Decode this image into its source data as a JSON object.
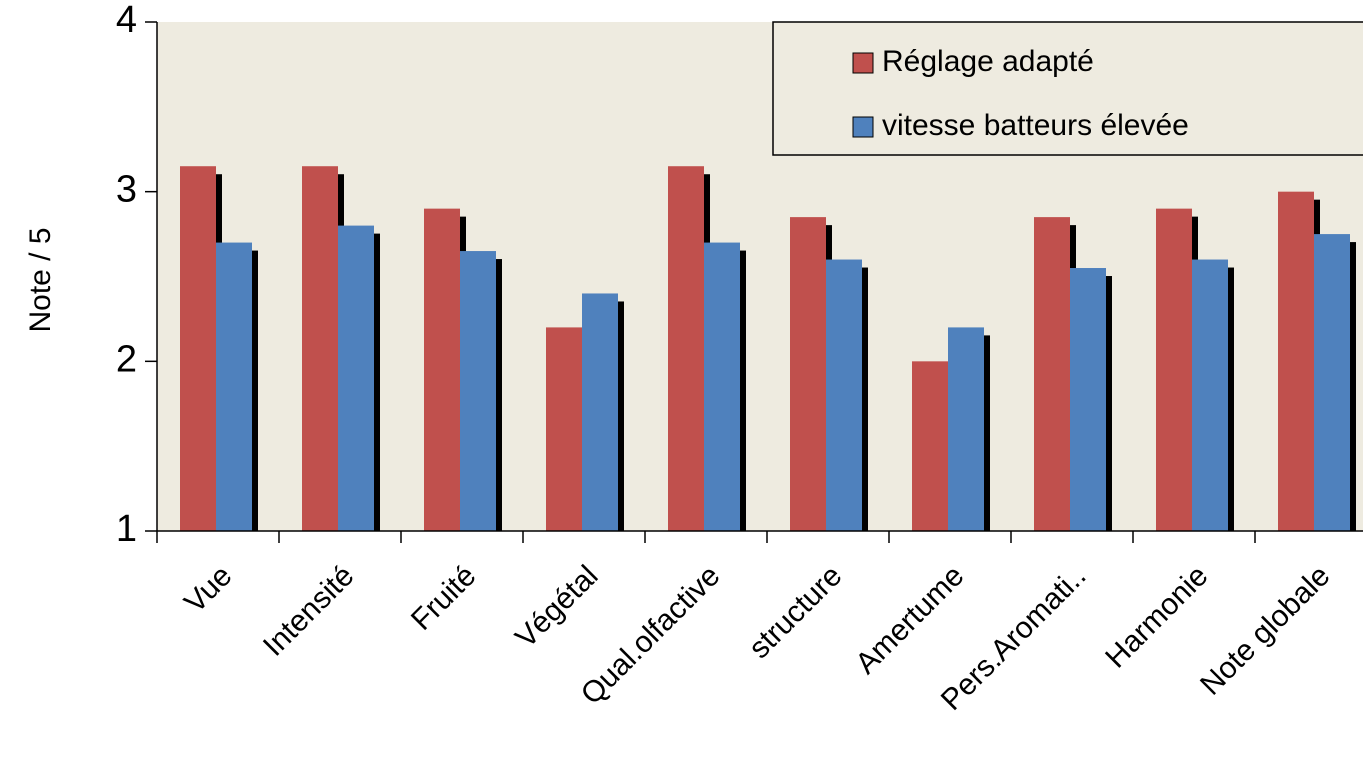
{
  "chart_data": {
    "type": "bar",
    "y_label": "Note / 5",
    "categories": [
      "Vue",
      "Intensité",
      "Fruité",
      "Végétal",
      "Qual.olfactive",
      "structure",
      "Amertume",
      "Pers.Aromati..",
      "Harmonie",
      "Note globale"
    ],
    "series": [
      {
        "name": "Réglage adapté",
        "color": "#c0504d",
        "values": [
          3.15,
          3.15,
          2.9,
          2.2,
          3.15,
          2.85,
          2.0,
          2.85,
          2.9,
          3.0
        ]
      },
      {
        "name": "vitesse batteurs élevée",
        "color": "#4f81bd",
        "values": [
          2.7,
          2.8,
          2.65,
          2.4,
          2.7,
          2.6,
          2.2,
          2.55,
          2.6,
          2.75
        ]
      }
    ],
    "ylim": [
      1,
      4
    ],
    "yticks": [
      1,
      2,
      3,
      4
    ],
    "legend": "top-right",
    "plot_background": "#eeebe0"
  }
}
